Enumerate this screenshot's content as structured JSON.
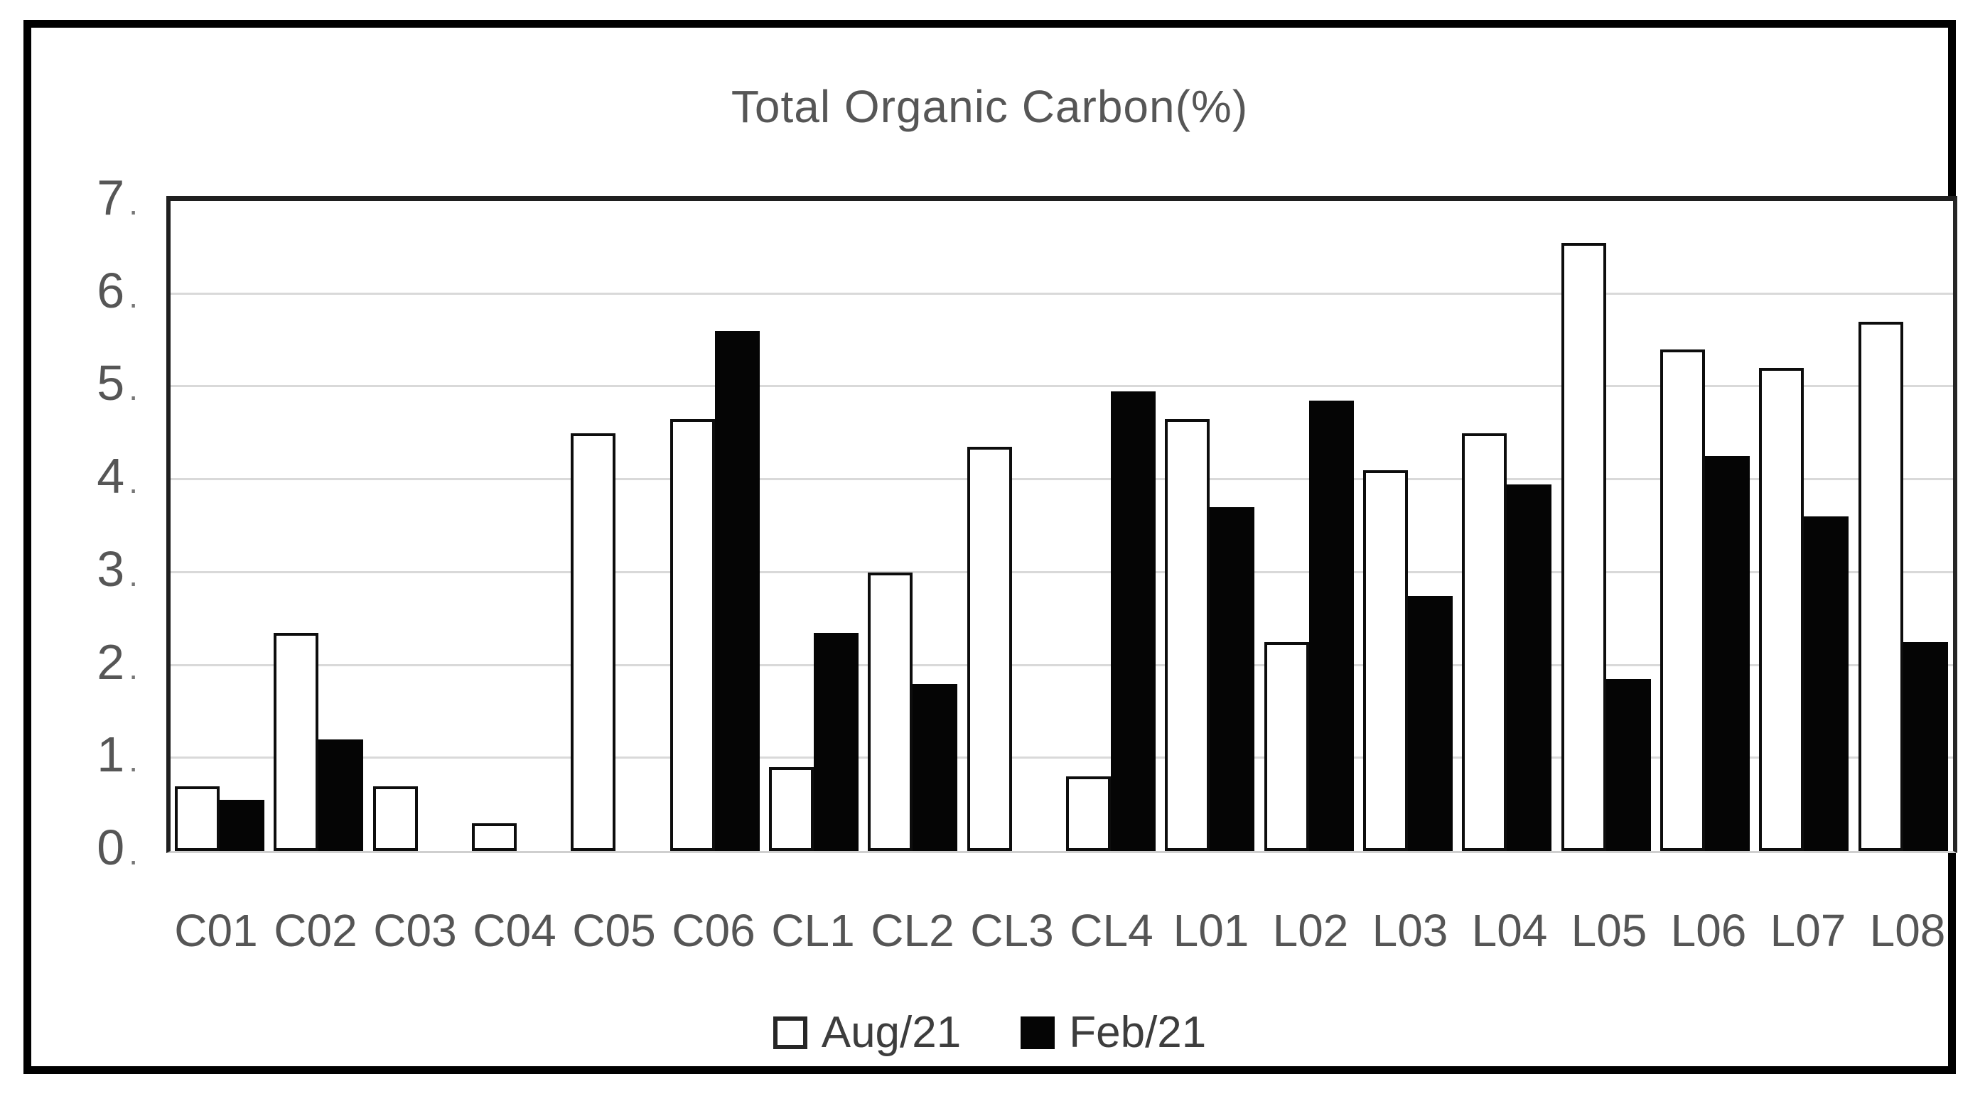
{
  "chart_data": {
    "type": "bar",
    "title": "Total Organic Carbon(%)",
    "categories": [
      "C01",
      "C02",
      "C03",
      "C04",
      "C05",
      "C06",
      "CL1",
      "CL2",
      "CL3",
      "CL4",
      "L01",
      "L02",
      "L03",
      "L04",
      "L05",
      "L06",
      "L07",
      "L08"
    ],
    "series": [
      {
        "name": "Aug/21",
        "fill": "#ffffff",
        "values": [
          0.7,
          2.35,
          0.7,
          0.3,
          4.5,
          4.65,
          0.9,
          3.0,
          4.35,
          0.8,
          4.65,
          2.25,
          4.1,
          4.5,
          6.55,
          5.4,
          5.2,
          5.7
        ]
      },
      {
        "name": "Feb/21",
        "fill": "#050505",
        "values": [
          0.55,
          1.2,
          null,
          null,
          null,
          5.6,
          2.35,
          1.8,
          null,
          4.95,
          3.7,
          4.85,
          2.75,
          3.95,
          1.85,
          4.25,
          3.6,
          2.25
        ]
      }
    ],
    "xlabel": "",
    "ylabel": "",
    "ylim": [
      0,
      7
    ],
    "yticks": [
      0,
      1,
      2,
      3,
      4,
      5,
      6,
      7
    ],
    "grid": true,
    "legend_position": "bottom"
  },
  "colors": {
    "grid": "#d9d9d9",
    "axis": "#1f1f1f",
    "tick_text": "#565656",
    "bar_outline": "#0d0d0d",
    "frame_border": "#000000"
  }
}
